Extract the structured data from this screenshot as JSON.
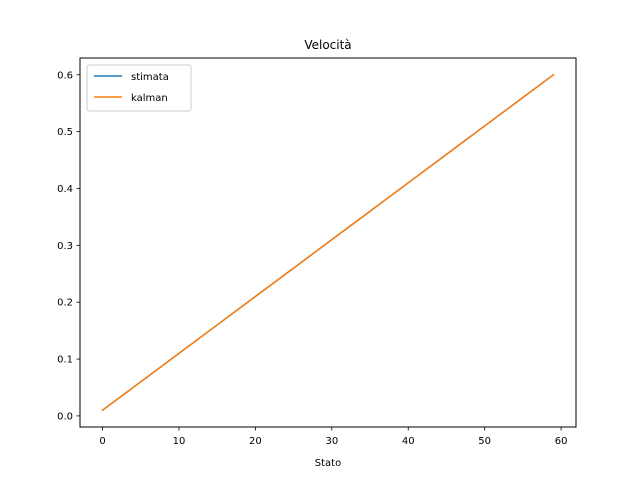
{
  "chart_data": {
    "type": "line",
    "title": "Velocità",
    "xlabel": "Stato",
    "ylabel": "",
    "xlim": [
      -2.95,
      61.95
    ],
    "ylim": [
      -0.0195,
      0.6295
    ],
    "xticks": [
      0,
      10,
      20,
      30,
      40,
      50,
      60
    ],
    "yticks": [
      0.0,
      0.1,
      0.2,
      0.3,
      0.4,
      0.5,
      0.6
    ],
    "ytick_labels": [
      "0.0",
      "0.1",
      "0.2",
      "0.3",
      "0.4",
      "0.5",
      "0.6"
    ],
    "grid": false,
    "legend_position": "upper-left",
    "series": [
      {
        "name": "stimata",
        "color": "#1f77b4",
        "x": [
          0,
          5,
          10,
          15,
          20,
          25,
          30,
          35,
          40,
          45,
          50,
          55,
          59
        ],
        "y": [
          0.01,
          0.06,
          0.11,
          0.16,
          0.21,
          0.26,
          0.31,
          0.36,
          0.41,
          0.46,
          0.51,
          0.56,
          0.6
        ]
      },
      {
        "name": "kalman",
        "color": "#ff7f0e",
        "x": [
          0,
          5,
          10,
          15,
          20,
          25,
          30,
          35,
          40,
          45,
          50,
          55,
          59
        ],
        "y": [
          0.01,
          0.06,
          0.11,
          0.16,
          0.21,
          0.26,
          0.31,
          0.36,
          0.41,
          0.46,
          0.51,
          0.56,
          0.6
        ]
      }
    ]
  }
}
